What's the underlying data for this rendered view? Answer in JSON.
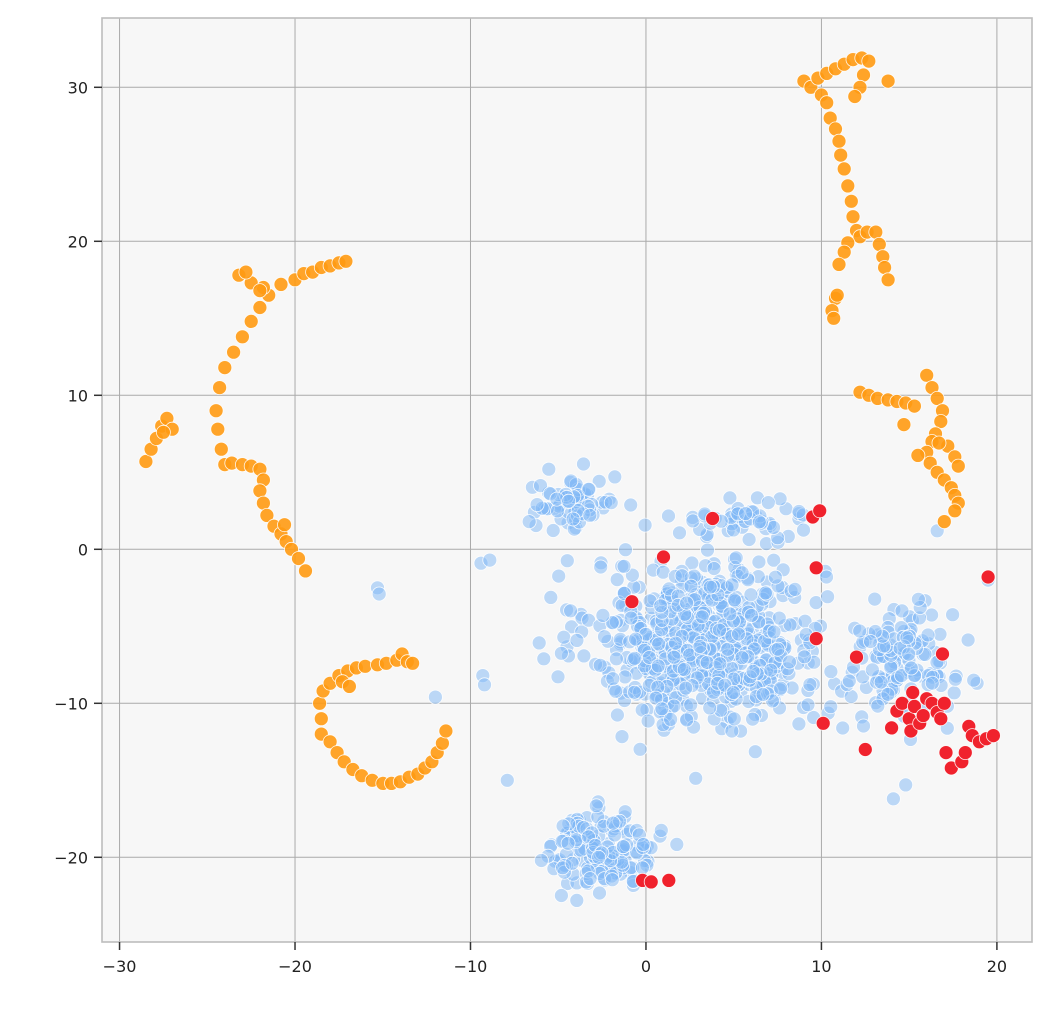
{
  "chart_data": {
    "type": "scatter",
    "title": "",
    "xlabel": "",
    "ylabel": "",
    "xlim": [
      -31,
      22
    ],
    "ylim": [
      -25.5,
      34.5
    ],
    "x_ticks": [
      -30,
      -20,
      -10,
      0,
      10,
      20
    ],
    "y_ticks": [
      -20,
      -10,
      0,
      10,
      20,
      30
    ],
    "x_tick_labels": [
      "−30",
      "−20",
      "−10",
      "0",
      "10",
      "20"
    ],
    "y_tick_labels": [
      "−20",
      "−10",
      "0",
      "10",
      "20",
      "30"
    ],
    "grid": true,
    "legend": "none",
    "background_color": "#f7f7f7",
    "series": [
      {
        "color": "#7fb8f5",
        "opacity": 0.5,
        "clusters": [
          {
            "center": [
              3.5,
              -6.0
            ],
            "spread": [
              5.5,
              4.5
            ],
            "count": 700
          },
          {
            "center": [
              -2.5,
              -19.5
            ],
            "spread": [
              2.5,
              2.0
            ],
            "count": 170
          },
          {
            "center": [
              -4.0,
              3.0
            ],
            "spread": [
              2.0,
              1.5
            ],
            "count": 70
          },
          {
            "center": [
              14.5,
              -7.5
            ],
            "spread": [
              2.5,
              3.0
            ],
            "count": 130
          },
          {
            "center": [
              6.0,
              2.0
            ],
            "spread": [
              2.5,
              1.0
            ],
            "count": 50
          }
        ],
        "points": [
          [
            -15.3,
            -2.5
          ],
          [
            -15.2,
            -2.9
          ],
          [
            -12.0,
            -9.6
          ],
          [
            -9.3,
            -8.2
          ],
          [
            -9.2,
            -8.8
          ],
          [
            -9.4,
            -0.9
          ],
          [
            -8.9,
            -0.7
          ],
          [
            -7.9,
            -15.0
          ],
          [
            16.6,
            1.2
          ],
          [
            19.5,
            -2.0
          ],
          [
            14.1,
            -16.2
          ],
          [
            14.8,
            -15.3
          ]
        ]
      },
      {
        "color": "#ff9a12",
        "opacity": 0.9,
        "points": [
          [
            -28.5,
            5.7
          ],
          [
            -28.2,
            6.5
          ],
          [
            -27.9,
            7.2
          ],
          [
            -27.6,
            8.0
          ],
          [
            -27.3,
            8.5
          ],
          [
            -27.0,
            7.8
          ],
          [
            -27.5,
            7.6
          ],
          [
            -24.0,
            5.5
          ],
          [
            -24.2,
            6.5
          ],
          [
            -24.4,
            7.8
          ],
          [
            -24.5,
            9.0
          ],
          [
            -24.3,
            10.5
          ],
          [
            -24.0,
            11.8
          ],
          [
            -23.5,
            12.8
          ],
          [
            -23.0,
            13.8
          ],
          [
            -22.5,
            14.8
          ],
          [
            -22.0,
            15.7
          ],
          [
            -21.5,
            16.5
          ],
          [
            -21.8,
            17.0
          ],
          [
            -22.5,
            17.3
          ],
          [
            -23.2,
            17.8
          ],
          [
            -20.8,
            17.2
          ],
          [
            -20.0,
            17.5
          ],
          [
            -19.5,
            17.9
          ],
          [
            -19.0,
            18.0
          ],
          [
            -18.5,
            18.3
          ],
          [
            -18.0,
            18.4
          ],
          [
            -17.5,
            18.6
          ],
          [
            -17.1,
            18.7
          ],
          [
            -22.8,
            18.0
          ],
          [
            -22.0,
            16.8
          ],
          [
            -23.6,
            5.6
          ],
          [
            -23.0,
            5.5
          ],
          [
            -22.5,
            5.4
          ],
          [
            -22.0,
            5.2
          ],
          [
            -21.8,
            4.5
          ],
          [
            -22.0,
            3.8
          ],
          [
            -21.8,
            3.0
          ],
          [
            -21.6,
            2.2
          ],
          [
            -21.2,
            1.5
          ],
          [
            -20.8,
            1.0
          ],
          [
            -20.5,
            0.5
          ],
          [
            -20.2,
            0.0
          ],
          [
            -19.8,
            -0.6
          ],
          [
            -19.4,
            -1.4
          ],
          [
            -20.6,
            1.6
          ],
          [
            -18.5,
            -12.0
          ],
          [
            -18.5,
            -11.0
          ],
          [
            -18.6,
            -10.0
          ],
          [
            -18.4,
            -9.2
          ],
          [
            -18.0,
            -8.7
          ],
          [
            -17.5,
            -8.2
          ],
          [
            -17.0,
            -7.9
          ],
          [
            -16.5,
            -7.7
          ],
          [
            -16.0,
            -7.6
          ],
          [
            -15.3,
            -7.5
          ],
          [
            -14.8,
            -7.4
          ],
          [
            -14.2,
            -7.2
          ],
          [
            -13.9,
            -6.8
          ],
          [
            -13.6,
            -7.3
          ],
          [
            -13.3,
            -7.4
          ],
          [
            -18.0,
            -12.5
          ],
          [
            -17.6,
            -13.2
          ],
          [
            -17.2,
            -13.8
          ],
          [
            -16.7,
            -14.3
          ],
          [
            -16.2,
            -14.7
          ],
          [
            -15.6,
            -15.0
          ],
          [
            -15.0,
            -15.2
          ],
          [
            -14.5,
            -15.2
          ],
          [
            -14.0,
            -15.1
          ],
          [
            -13.5,
            -14.8
          ],
          [
            -13.0,
            -14.6
          ],
          [
            -12.6,
            -14.2
          ],
          [
            -12.2,
            -13.8
          ],
          [
            -11.9,
            -13.2
          ],
          [
            -11.6,
            -12.6
          ],
          [
            -11.4,
            -11.8
          ],
          [
            -17.3,
            -8.6
          ],
          [
            -16.9,
            -8.9
          ],
          [
            9.0,
            30.4
          ],
          [
            9.4,
            30.0
          ],
          [
            9.8,
            30.6
          ],
          [
            10.3,
            30.9
          ],
          [
            10.8,
            31.2
          ],
          [
            11.3,
            31.5
          ],
          [
            11.8,
            31.8
          ],
          [
            12.3,
            31.9
          ],
          [
            12.7,
            31.7
          ],
          [
            12.4,
            30.8
          ],
          [
            12.2,
            30.0
          ],
          [
            11.9,
            29.4
          ],
          [
            13.8,
            30.4
          ],
          [
            10.0,
            29.5
          ],
          [
            10.3,
            29.0
          ],
          [
            10.5,
            28.0
          ],
          [
            10.8,
            27.3
          ],
          [
            11.0,
            26.5
          ],
          [
            11.1,
            25.6
          ],
          [
            11.3,
            24.7
          ],
          [
            11.5,
            23.6
          ],
          [
            11.7,
            22.6
          ],
          [
            11.8,
            21.6
          ],
          [
            12.0,
            20.7
          ],
          [
            12.2,
            20.3
          ],
          [
            12.6,
            20.6
          ],
          [
            13.1,
            20.6
          ],
          [
            13.3,
            19.8
          ],
          [
            13.5,
            19.0
          ],
          [
            13.6,
            18.3
          ],
          [
            13.8,
            17.5
          ],
          [
            11.5,
            19.9
          ],
          [
            11.3,
            19.3
          ],
          [
            11.0,
            18.5
          ],
          [
            10.8,
            16.3
          ],
          [
            10.6,
            15.5
          ],
          [
            10.7,
            15.0
          ],
          [
            10.9,
            16.5
          ],
          [
            12.2,
            10.2
          ],
          [
            12.7,
            10.0
          ],
          [
            13.2,
            9.8
          ],
          [
            13.8,
            9.7
          ],
          [
            14.3,
            9.6
          ],
          [
            14.8,
            9.5
          ],
          [
            15.3,
            9.3
          ],
          [
            16.0,
            11.3
          ],
          [
            16.3,
            10.5
          ],
          [
            16.6,
            9.8
          ],
          [
            16.9,
            9.0
          ],
          [
            16.8,
            8.3
          ],
          [
            16.5,
            7.5
          ],
          [
            16.3,
            7.0
          ],
          [
            16.0,
            6.3
          ],
          [
            16.2,
            5.6
          ],
          [
            16.6,
            5.0
          ],
          [
            17.0,
            4.5
          ],
          [
            17.4,
            4.0
          ],
          [
            17.6,
            3.5
          ],
          [
            17.8,
            3.0
          ],
          [
            17.6,
            2.5
          ],
          [
            17.0,
            1.8
          ],
          [
            14.7,
            8.1
          ],
          [
            17.2,
            6.7
          ],
          [
            17.6,
            6.0
          ],
          [
            17.8,
            5.4
          ],
          [
            16.7,
            6.9
          ],
          [
            15.5,
            6.1
          ]
        ]
      },
      {
        "color": "#f0222d",
        "opacity": 1.0,
        "points": [
          [
            3.8,
            2.0
          ],
          [
            9.5,
            2.1
          ],
          [
            9.9,
            2.5
          ],
          [
            1.0,
            -0.5
          ],
          [
            -0.8,
            -3.4
          ],
          [
            9.7,
            -1.2
          ],
          [
            9.7,
            -5.8
          ],
          [
            12.0,
            -7.0
          ],
          [
            16.9,
            -6.8
          ],
          [
            19.5,
            -1.8
          ],
          [
            10.1,
            -11.3
          ],
          [
            12.5,
            -13.0
          ],
          [
            14.0,
            -11.6
          ],
          [
            14.3,
            -10.5
          ],
          [
            14.6,
            -10.0
          ],
          [
            15.0,
            -11.0
          ],
          [
            15.1,
            -11.8
          ],
          [
            15.3,
            -10.2
          ],
          [
            15.2,
            -9.3
          ],
          [
            15.6,
            -11.3
          ],
          [
            15.8,
            -10.8
          ],
          [
            16.0,
            -9.7
          ],
          [
            16.3,
            -10.0
          ],
          [
            16.6,
            -10.6
          ],
          [
            16.8,
            -11.0
          ],
          [
            17.0,
            -10.0
          ],
          [
            17.1,
            -13.2
          ],
          [
            17.4,
            -14.2
          ],
          [
            18.0,
            -13.8
          ],
          [
            18.2,
            -13.2
          ],
          [
            18.4,
            -11.5
          ],
          [
            18.6,
            -12.1
          ],
          [
            19.0,
            -12.5
          ],
          [
            19.4,
            -12.3
          ],
          [
            19.8,
            -12.1
          ],
          [
            -0.2,
            -21.5
          ],
          [
            0.3,
            -21.6
          ],
          [
            1.3,
            -21.5
          ]
        ]
      }
    ]
  }
}
